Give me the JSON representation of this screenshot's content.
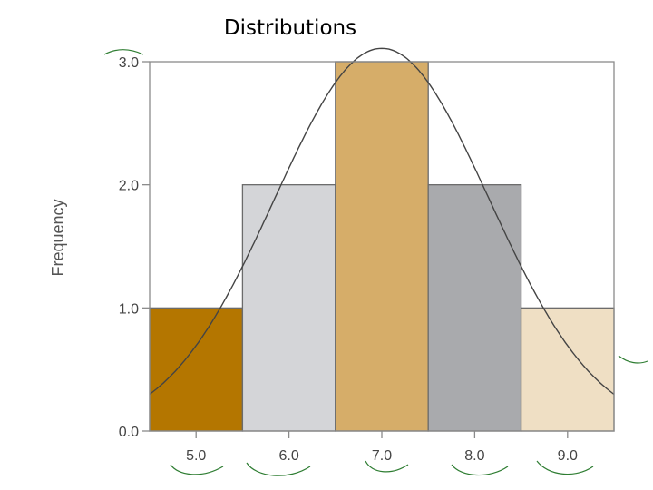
{
  "title": "Distributions",
  "chart_data": {
    "type": "bar",
    "categories": [
      "5.0",
      "6.0",
      "7.0",
      "8.0",
      "9.0"
    ],
    "values": [
      1,
      2,
      3,
      2,
      1
    ],
    "bar_colors": [
      "#b47600",
      "#d4d5d8",
      "#d6ad69",
      "#a9aaad",
      "#efdfc4"
    ],
    "ylabel": "Frequency",
    "xlabel": "",
    "ylim": [
      0,
      3
    ],
    "yticks": [
      "0.0",
      "1.0",
      "2.0",
      "3.0"
    ],
    "ytick_values": [
      0,
      1,
      2,
      3
    ],
    "curve": {
      "type": "normal",
      "mean": 7.0,
      "sd": 1.155,
      "n": 9,
      "color": "#444444"
    },
    "grid": false,
    "legend": "none"
  }
}
